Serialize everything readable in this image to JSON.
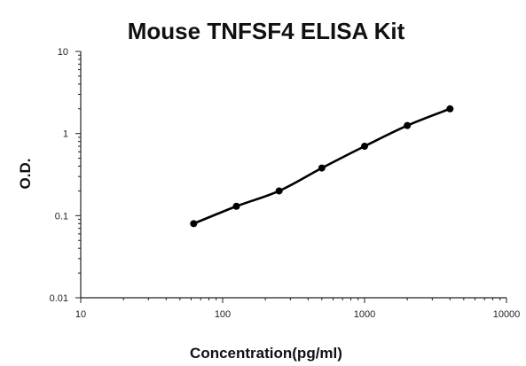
{
  "chart_data": {
    "type": "scatter",
    "title": "Mouse TNFSF4 ELISA Kit",
    "xlabel": "Concentration(pg/ml)",
    "ylabel": "O.D.",
    "xscale": "log",
    "yscale": "log",
    "xlim": [
      10,
      10000
    ],
    "ylim": [
      0.01,
      10
    ],
    "xticks": [
      "10",
      "100",
      "1000",
      "10000"
    ],
    "yticks": [
      "0.01",
      "0.1",
      "1",
      "10"
    ],
    "grid": false,
    "legend": "none",
    "series": [
      {
        "x": [
          62.5,
          125,
          250,
          500,
          1000,
          2000,
          4000
        ],
        "y": [
          0.08,
          0.13,
          0.2,
          0.38,
          0.7,
          1.25,
          2.0
        ],
        "fit_line": true
      }
    ]
  }
}
